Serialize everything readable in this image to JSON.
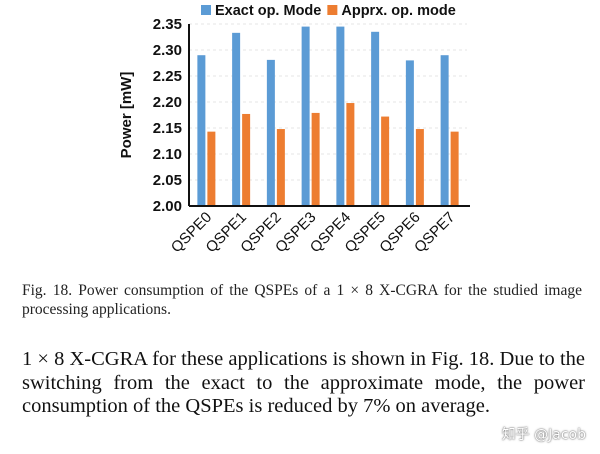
{
  "chart_data": {
    "type": "bar",
    "title": "",
    "xlabel": "",
    "ylabel": "Power [mW]",
    "ylim": [
      2.0,
      2.35
    ],
    "yticks": [
      "2.00",
      "2.05",
      "2.10",
      "2.15",
      "2.20",
      "2.25",
      "2.30",
      "2.35"
    ],
    "grid": true,
    "legend": "top",
    "categories": [
      "QSPE0",
      "QSPE1",
      "QSPE2",
      "QSPE3",
      "QSPE4",
      "QSPE5",
      "QSPE6",
      "QSPE7"
    ],
    "series": [
      {
        "name": "Exact op. Mode",
        "color": "#5b9bd5",
        "values": [
          2.29,
          2.333,
          2.281,
          2.345,
          2.345,
          2.335,
          2.28,
          2.29
        ]
      },
      {
        "name": "Apprx. op. mode",
        "color": "#ed7d31",
        "values": [
          2.143,
          2.177,
          2.148,
          2.179,
          2.198,
          2.172,
          2.148,
          2.143
        ]
      }
    ]
  },
  "caption": "Fig. 18.    Power consumption of the QSPEs of a 1 × 8 X-CGRA for the studied image processing applications.",
  "body_text": "1 × 8 X-CGRA for these applications is shown in Fig. 18. Due to the switching from the exact to the approximate mode, the power consumption of the QSPEs is reduced by 7% on average.",
  "watermark": "知乎 @Jacob"
}
